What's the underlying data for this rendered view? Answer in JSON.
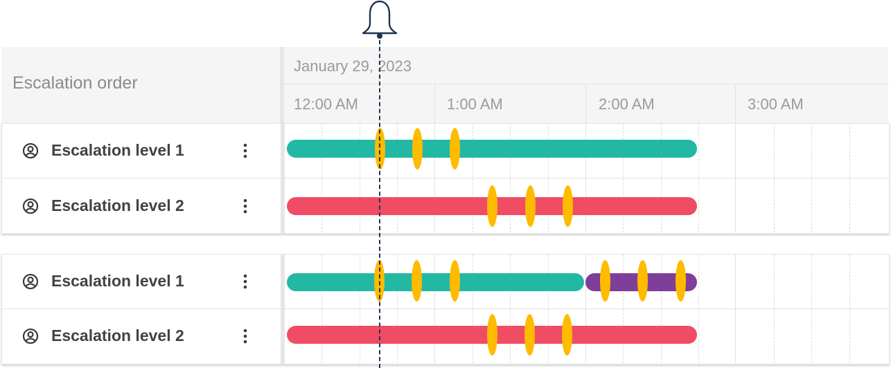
{
  "header": {
    "left_title": "Escalation order",
    "date": "January 29, 2023",
    "hours": [
      "12:00 AM",
      "1:00 AM",
      "2:00 AM",
      "3:00 AM"
    ]
  },
  "panels": [
    {
      "rows": [
        {
          "label": "Escalation level 1"
        },
        {
          "label": "Escalation level 2"
        }
      ]
    },
    {
      "rows": [
        {
          "label": "Escalation level 1"
        },
        {
          "label": "Escalation level 2"
        }
      ]
    }
  ],
  "icons": {
    "alert": "bell-icon",
    "user": "user-circle-icon",
    "menu": "more-vertical-icon"
  },
  "colors": {
    "level1_bar": "#22b8a4",
    "level2_bar": "#f04c63",
    "extension_bar": "#7e3e9a",
    "marker": "#ffbb00",
    "now_line": "#1f3550"
  }
}
